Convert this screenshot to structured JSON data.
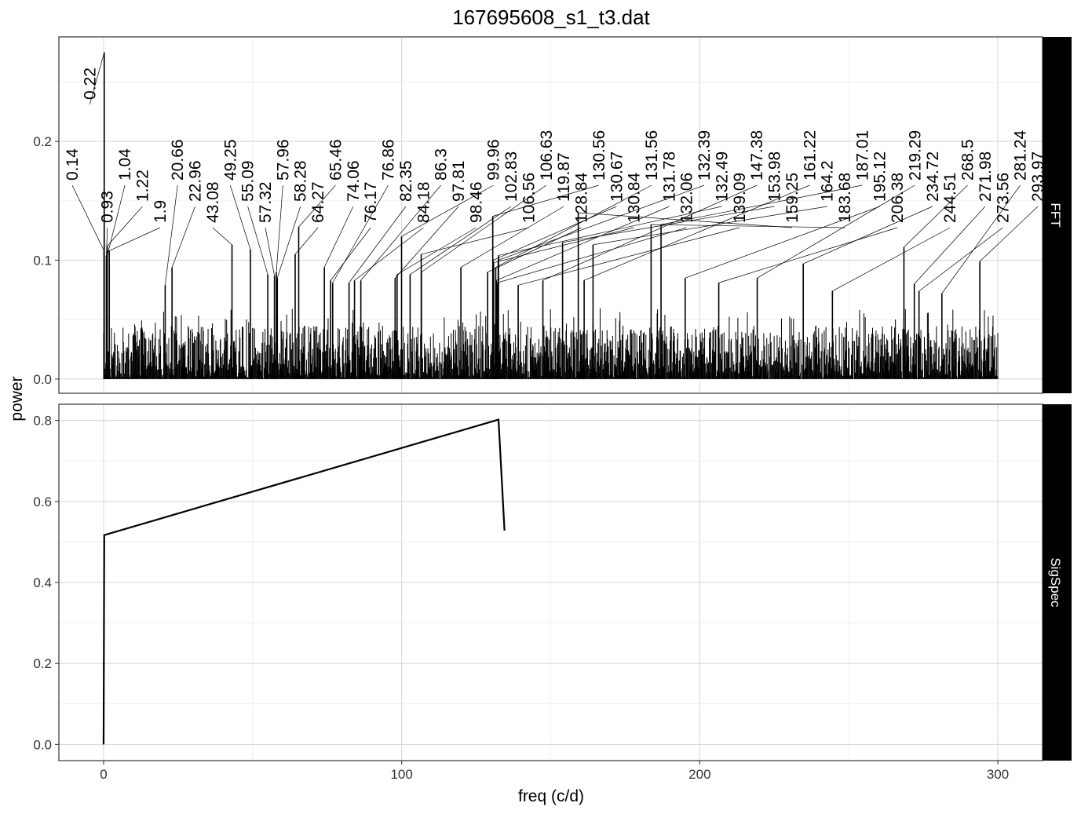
{
  "chart_data": {
    "title": "167695608_s1_t3.dat",
    "xlabel": "freq (c/d)",
    "ylabel": "power",
    "x_ticks": [
      "0",
      "100",
      "200",
      "300"
    ],
    "xlim": [
      -15,
      315
    ],
    "grid": true,
    "panels": [
      {
        "strip": "FFT",
        "type": "line",
        "ylim": [
          -0.012,
          0.288
        ],
        "y_ticks": [
          "0.0",
          "0.1",
          "0.2"
        ],
        "noise_floor": {
          "x_range": [
            0,
            300
          ],
          "typical_max": 0.06
        },
        "peaks": [
          {
            "x": 0.22,
            "y": 0.275,
            "label": "0.22"
          },
          {
            "x": 0.14,
            "y": 0.108,
            "label": "0.14"
          },
          {
            "x": 0.93,
            "y": 0.104,
            "label": "0.93"
          },
          {
            "x": 1.04,
            "y": 0.102,
            "label": "1.04"
          },
          {
            "x": 1.22,
            "y": 0.112,
            "label": "1.22"
          },
          {
            "x": 1.9,
            "y": 0.108,
            "label": "1.9"
          },
          {
            "x": 20.66,
            "y": 0.079,
            "label": "20.66"
          },
          {
            "x": 22.96,
            "y": 0.094,
            "label": "22.96"
          },
          {
            "x": 43.08,
            "y": 0.113,
            "label": "43.08"
          },
          {
            "x": 49.25,
            "y": 0.109,
            "label": "49.25"
          },
          {
            "x": 55.09,
            "y": 0.088,
            "label": "55.09"
          },
          {
            "x": 57.32,
            "y": 0.087,
            "label": "57.32"
          },
          {
            "x": 57.96,
            "y": 0.09,
            "label": "57.96"
          },
          {
            "x": 58.28,
            "y": 0.085,
            "label": "58.28"
          },
          {
            "x": 64.27,
            "y": 0.105,
            "label": "64.27"
          },
          {
            "x": 65.46,
            "y": 0.128,
            "label": "65.46"
          },
          {
            "x": 74.06,
            "y": 0.094,
            "label": "74.06"
          },
          {
            "x": 76.17,
            "y": 0.083,
            "label": "76.17"
          },
          {
            "x": 76.86,
            "y": 0.081,
            "label": "76.86"
          },
          {
            "x": 82.35,
            "y": 0.081,
            "label": "82.35"
          },
          {
            "x": 84.18,
            "y": 0.083,
            "label": "84.18"
          },
          {
            "x": 86.3,
            "y": 0.083,
            "label": "86.3"
          },
          {
            "x": 97.81,
            "y": 0.085,
            "label": "97.81"
          },
          {
            "x": 98.46,
            "y": 0.088,
            "label": "98.46"
          },
          {
            "x": 99.96,
            "y": 0.12,
            "label": "99.96"
          },
          {
            "x": 102.83,
            "y": 0.088,
            "label": "102.83"
          },
          {
            "x": 106.56,
            "y": 0.105,
            "label": "106.56"
          },
          {
            "x": 106.63,
            "y": 0.09,
            "label": "106.63"
          },
          {
            "x": 119.87,
            "y": 0.094,
            "label": "119.87"
          },
          {
            "x": 128.84,
            "y": 0.09,
            "label": "128.84"
          },
          {
            "x": 130.56,
            "y": 0.137,
            "label": "130.56"
          },
          {
            "x": 130.67,
            "y": 0.1,
            "label": "130.67"
          },
          {
            "x": 130.84,
            "y": 0.098,
            "label": "130.84"
          },
          {
            "x": 131.56,
            "y": 0.094,
            "label": "131.56"
          },
          {
            "x": 131.78,
            "y": 0.083,
            "label": "131.78"
          },
          {
            "x": 132.06,
            "y": 0.081,
            "label": "132.06"
          },
          {
            "x": 132.39,
            "y": 0.1,
            "label": "132.39"
          },
          {
            "x": 132.49,
            "y": 0.104,
            "label": "132.49"
          },
          {
            "x": 139.09,
            "y": 0.079,
            "label": "139.09"
          },
          {
            "x": 147.38,
            "y": 0.083,
            "label": "147.38"
          },
          {
            "x": 153.98,
            "y": 0.115,
            "label": "153.98"
          },
          {
            "x": 159.25,
            "y": 0.14,
            "label": "159.25"
          },
          {
            "x": 161.22,
            "y": 0.083,
            "label": "161.22"
          },
          {
            "x": 164.2,
            "y": 0.113,
            "label": "164.2"
          },
          {
            "x": 183.68,
            "y": 0.13,
            "label": "183.68"
          },
          {
            "x": 187.01,
            "y": 0.13,
            "label": "187.01"
          },
          {
            "x": 195.12,
            "y": 0.085,
            "label": "195.12"
          },
          {
            "x": 206.38,
            "y": 0.081,
            "label": "206.38"
          },
          {
            "x": 219.29,
            "y": 0.085,
            "label": "219.29"
          },
          {
            "x": 234.72,
            "y": 0.097,
            "label": "234.72"
          },
          {
            "x": 244.51,
            "y": 0.074,
            "label": "244.51"
          },
          {
            "x": 268.5,
            "y": 0.111,
            "label": "268.5"
          },
          {
            "x": 271.98,
            "y": 0.08,
            "label": "271.98"
          },
          {
            "x": 273.56,
            "y": 0.074,
            "label": "273.56"
          },
          {
            "x": 281.24,
            "y": 0.072,
            "label": "281.24"
          },
          {
            "x": 293.97,
            "y": 0.099,
            "label": "293.97"
          }
        ]
      },
      {
        "strip": "SigSpec",
        "type": "line",
        "ylim": [
          -0.04,
          0.84
        ],
        "y_ticks": [
          "0.0",
          "0.2",
          "0.4",
          "0.6",
          "0.8"
        ],
        "x": [
          0.0,
          0.22,
          132.49,
          134.5
        ],
        "y": [
          0.0,
          0.517,
          0.802,
          0.528
        ]
      }
    ]
  }
}
